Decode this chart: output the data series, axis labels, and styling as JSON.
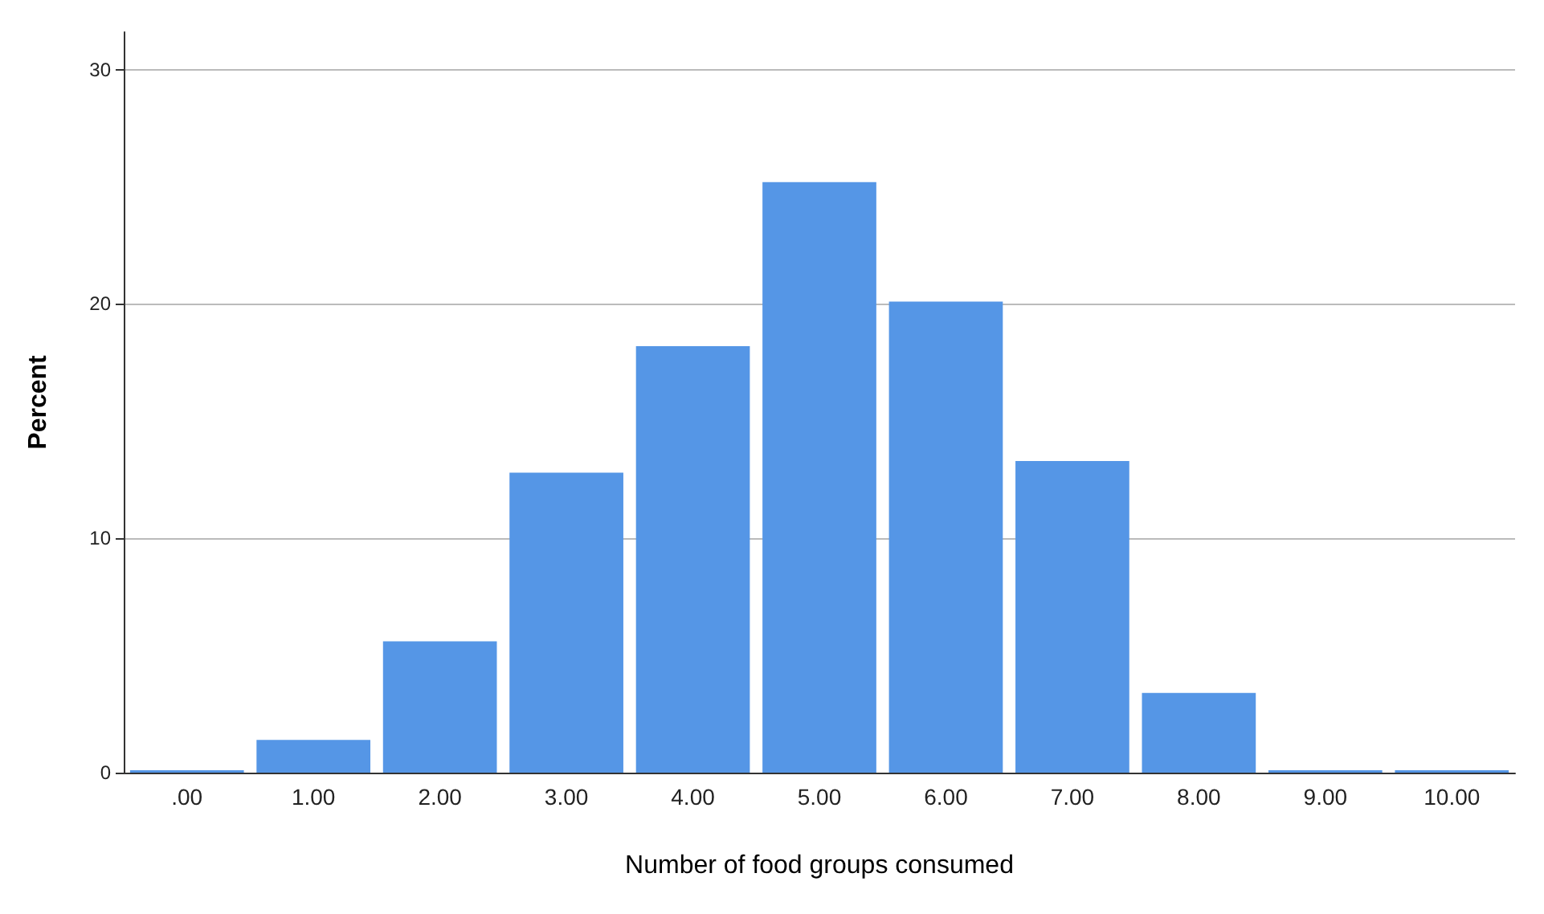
{
  "chart_data": {
    "type": "bar",
    "xlabel": "Number of food groups consumed",
    "ylabel": "Percent",
    "categories": [
      ".00",
      "1.00",
      "2.00",
      "3.00",
      "4.00",
      "5.00",
      "6.00",
      "7.00",
      "8.00",
      "9.00",
      "10.00"
    ],
    "values": [
      0.1,
      1.4,
      5.6,
      12.8,
      18.2,
      25.2,
      20.1,
      13.3,
      3.4,
      0.1,
      0.1
    ],
    "color": "#5596e6",
    "ylim": [
      0,
      31.6
    ],
    "yticks": [
      0,
      10,
      20,
      30
    ],
    "grid": "y"
  }
}
